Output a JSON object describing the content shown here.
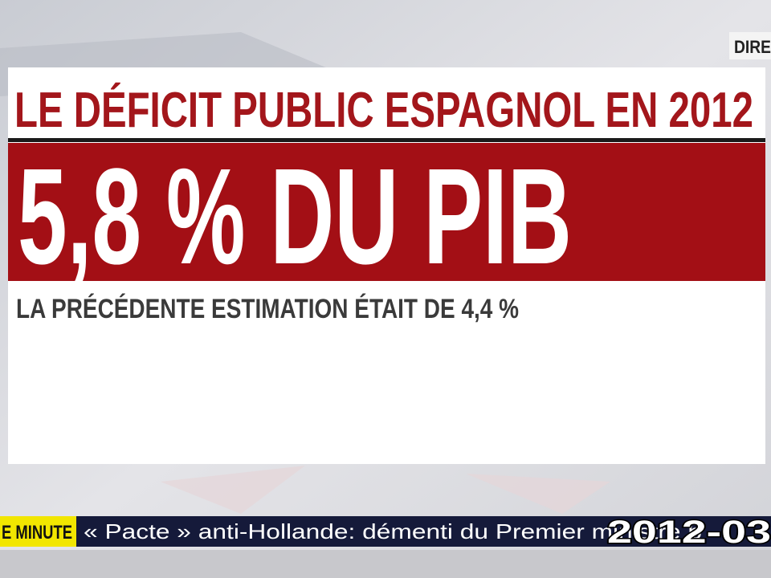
{
  "live_badge": "DIRE",
  "card": {
    "title": "LE DÉFICIT PUBLIC ESPAGNOL EN 2012",
    "headline": "5,8 % DU PIB",
    "subtitle": "LA PRÉCÉDENTE ESTIMATION ÉTAIT DE 4,4 %"
  },
  "ticker": {
    "label": "E MINUTE",
    "text": "« Pacte » anti-Hollande: démenti du Premier ministre b"
  },
  "timestamp": "2012-03"
}
